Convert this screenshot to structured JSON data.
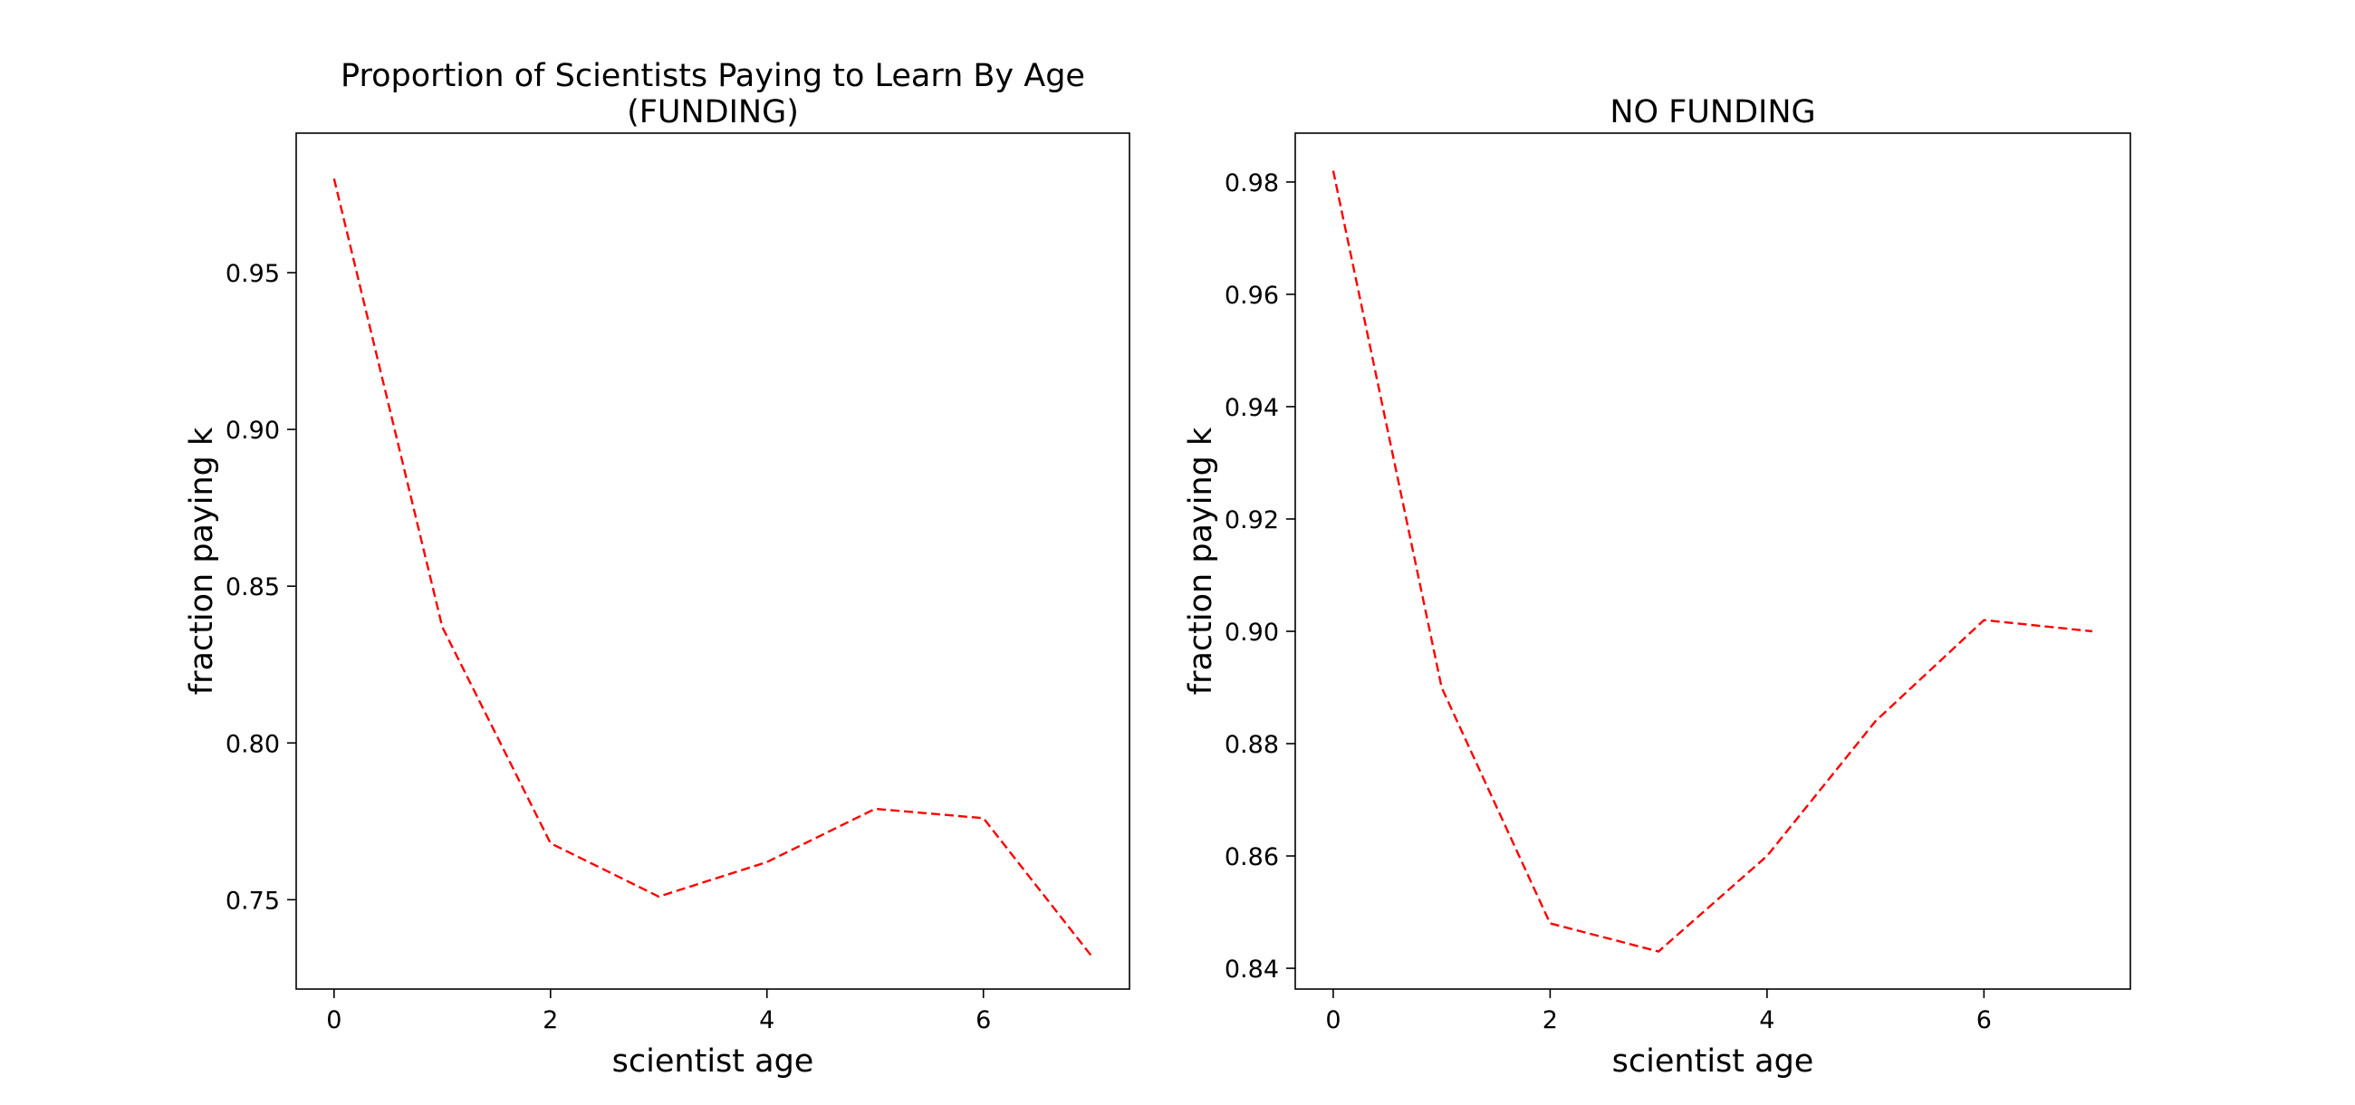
{
  "chart_data": [
    {
      "type": "line",
      "title": "Proportion of Scientists Paying to Learn By Age\n(FUNDING)",
      "xlabel": "scientist age",
      "ylabel": "fraction paying k",
      "xlim": [
        -0.35,
        7.35
      ],
      "ylim": [
        0.7215,
        0.9945
      ],
      "xticks": [
        0,
        2,
        4,
        6
      ],
      "xtick_labels": [
        "0",
        "2",
        "4",
        "6"
      ],
      "yticks": [
        0.75,
        0.8,
        0.85,
        0.9,
        0.95
      ],
      "ytick_labels": [
        "0.75",
        "0.80",
        "0.85",
        "0.90",
        "0.95"
      ],
      "grid": false,
      "series": [
        {
          "color": "#ff0000",
          "linestyle": "dashed",
          "x": [
            0,
            1,
            2,
            3,
            4,
            5,
            6,
            7
          ],
          "y": [
            0.98,
            0.837,
            0.768,
            0.751,
            0.762,
            0.779,
            0.776,
            0.732
          ]
        }
      ]
    },
    {
      "type": "line",
      "title": "NO FUNDING",
      "xlabel": "scientist age",
      "ylabel": "fraction paying k",
      "xlim": [
        -0.35,
        7.35
      ],
      "ylim": [
        0.8363,
        0.9887
      ],
      "xticks": [
        0,
        2,
        4,
        6
      ],
      "xtick_labels": [
        "0",
        "2",
        "4",
        "6"
      ],
      "yticks": [
        0.84,
        0.86,
        0.88,
        0.9,
        0.92,
        0.94,
        0.96,
        0.98
      ],
      "ytick_labels": [
        "0.84",
        "0.86",
        "0.88",
        "0.90",
        "0.92",
        "0.94",
        "0.96",
        "0.98"
      ],
      "grid": false,
      "series": [
        {
          "color": "#ff0000",
          "linestyle": "dashed",
          "x": [
            0,
            1,
            2,
            3,
            4,
            5,
            6,
            7
          ],
          "y": [
            0.982,
            0.89,
            0.848,
            0.843,
            0.86,
            0.884,
            0.902,
            0.9
          ]
        }
      ]
    }
  ]
}
